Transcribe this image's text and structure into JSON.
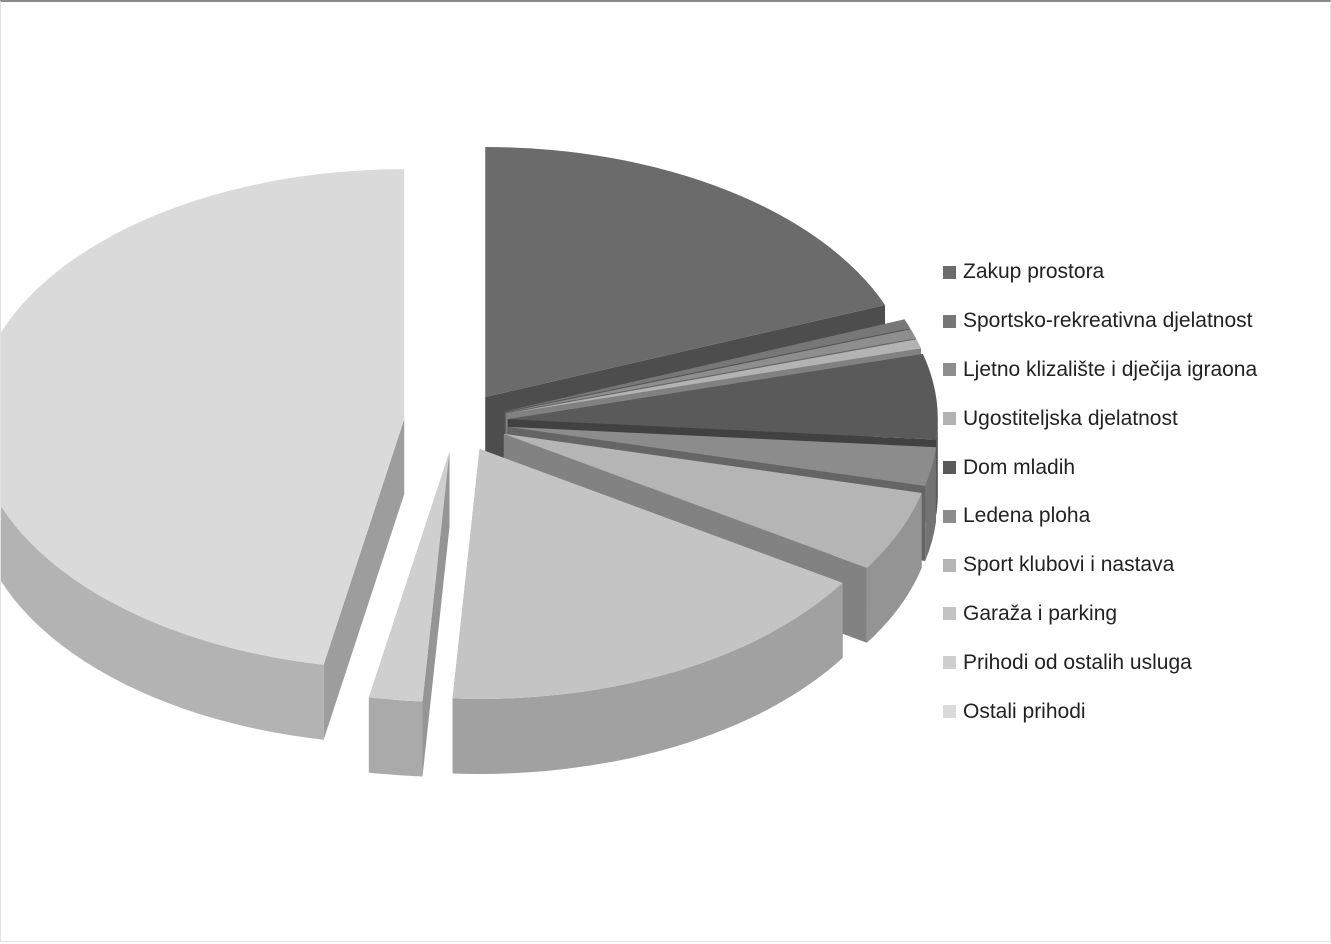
{
  "chart_data": {
    "type": "pie",
    "style": "3d-exploded",
    "legend_position": "right",
    "slices": [
      {
        "label": "Zakup prostora",
        "value": 19,
        "color": "#6b6b6b"
      },
      {
        "label": "Sportsko-rekreativna djelatnost",
        "value": 0.6,
        "color": "#777777"
      },
      {
        "label": "Ljetno klizalište i dječija igraona",
        "value": 0.6,
        "color": "#8e8e8e"
      },
      {
        "label": "Ugostiteljska djelatnost",
        "value": 0.6,
        "color": "#b3b3b3"
      },
      {
        "label": "Dom mladih",
        "value": 5.5,
        "color": "#5a5a5a"
      },
      {
        "label": "Ledena ploha",
        "value": 2.5,
        "color": "#8c8c8c"
      },
      {
        "label": "Sport klubovi i nastava",
        "value": 5.2,
        "color": "#b5b5b5"
      },
      {
        "label": "Garaža i parking",
        "value": 17,
        "color": "#c4c4c4"
      },
      {
        "label": "Prihodi od ostalih usluga",
        "value": 2,
        "color": "#cfcfcf"
      },
      {
        "label": "Ostali prihodi",
        "value": 47,
        "color": "#dadada"
      }
    ]
  }
}
